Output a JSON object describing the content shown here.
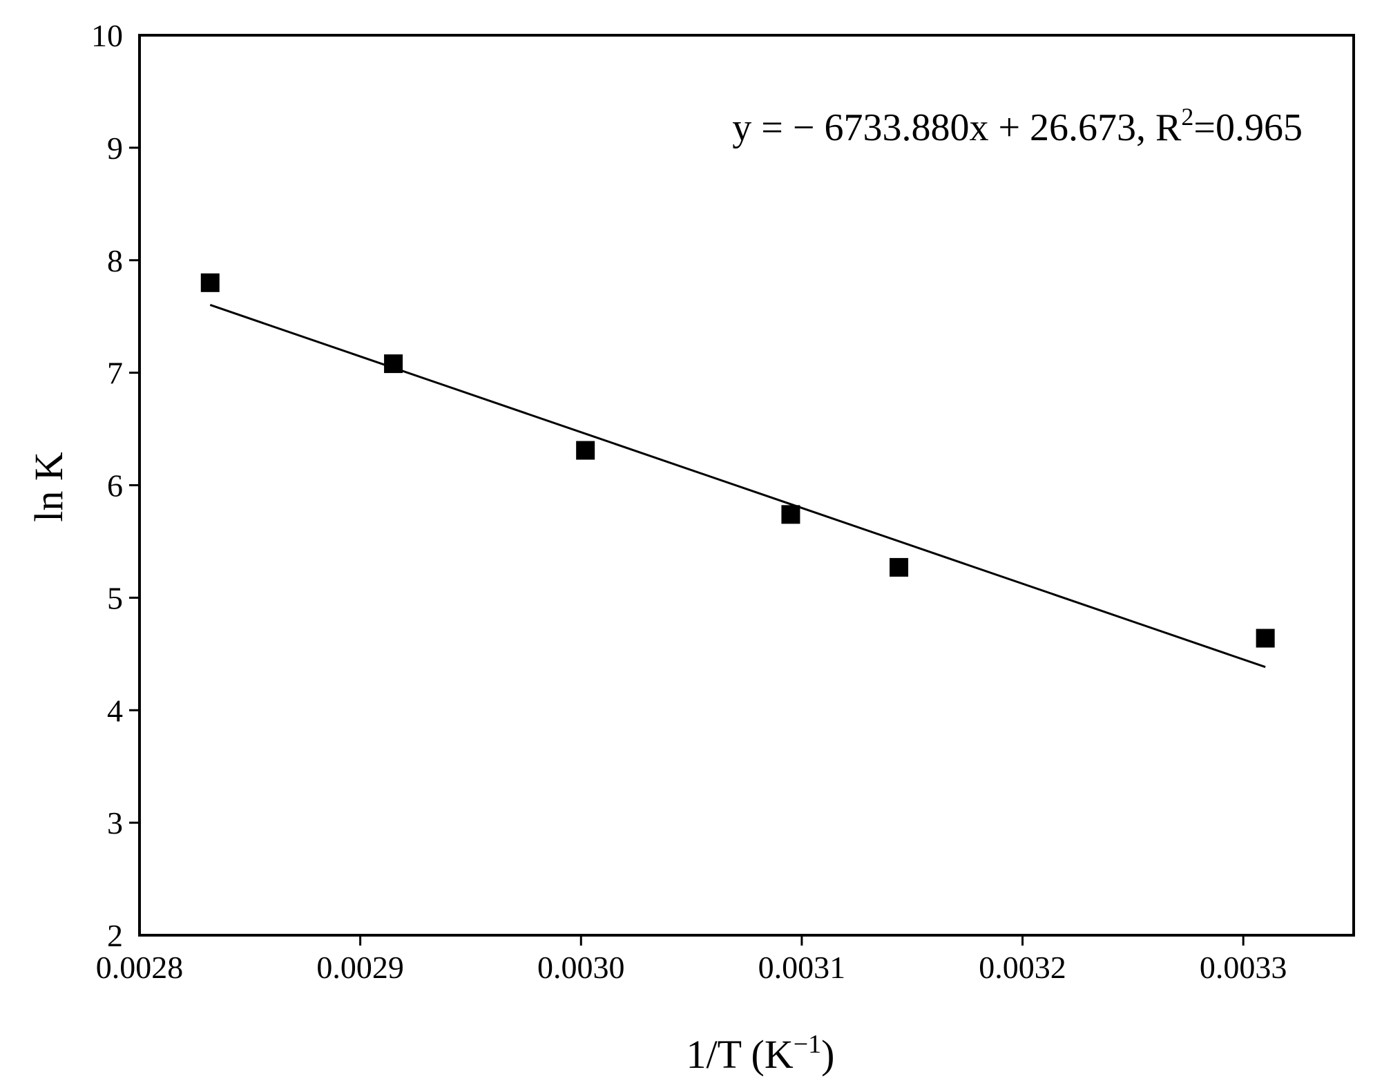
{
  "chart_data": {
    "type": "scatter",
    "xlabel": {
      "base": "1/T (K",
      "sup": "−1",
      "tail": ")"
    },
    "ylabel": "ln K",
    "xlim": [
      0.0028,
      0.00335
    ],
    "ylim": [
      2,
      10
    ],
    "x_ticks": [
      0.0028,
      0.0029,
      0.003,
      0.0031,
      0.0032,
      0.0033
    ],
    "x_tick_labels": [
      "0.0028",
      "0.0029",
      "0.0030",
      "0.0031",
      "0.0032",
      "0.0033"
    ],
    "y_ticks": [
      2,
      3,
      4,
      5,
      6,
      7,
      8,
      9,
      10
    ],
    "y_tick_labels": [
      "2",
      "3",
      "4",
      "5",
      "6",
      "7",
      "8",
      "9",
      "10"
    ],
    "points": [
      {
        "x": 0.002832,
        "y": 7.8
      },
      {
        "x": 0.002915,
        "y": 7.08
      },
      {
        "x": 0.003002,
        "y": 6.31
      },
      {
        "x": 0.003095,
        "y": 5.74
      },
      {
        "x": 0.003144,
        "y": 5.27
      },
      {
        "x": 0.00331,
        "y": 4.64
      }
    ],
    "marker": "square",
    "fit_line": {
      "slope": -6733.88,
      "intercept": 26.673,
      "x_range": [
        0.002832,
        0.00331
      ]
    },
    "annotation": {
      "main": "y = − 6733.880x + 26.673, R",
      "sup": "2",
      "tail": "=0.965"
    },
    "colors": {
      "marker": "#000000",
      "line": "#000000",
      "axes": "#000000"
    },
    "grid": false,
    "legend": "none"
  }
}
